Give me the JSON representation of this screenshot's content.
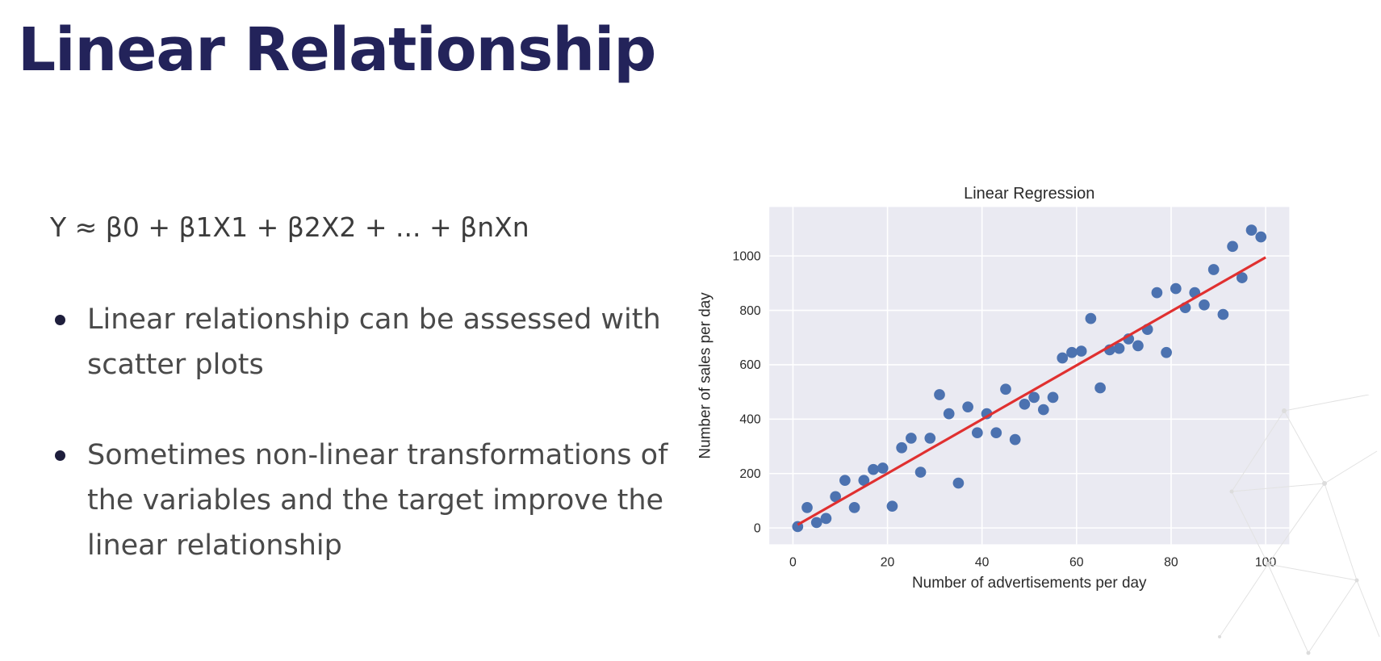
{
  "slide": {
    "title": "Linear Relationship",
    "formula": "Y ≈ β0 + β1X1 + β2X2 + ... + βnXn",
    "bullets": [
      "Linear relationship can be assessed with scatter plots",
      "Sometimes non-linear transformations of the variables and the target improve the linear relationship"
    ]
  },
  "chart_data": {
    "type": "scatter",
    "title": "Linear Regression",
    "xlabel": "Number of advertisements per day",
    "ylabel": "Number of sales per day",
    "xlim": [
      -5,
      105
    ],
    "ylim": [
      -60,
      1180
    ],
    "xticks": [
      0,
      20,
      40,
      60,
      80,
      100
    ],
    "yticks": [
      0,
      200,
      400,
      600,
      800,
      1000
    ],
    "grid": true,
    "colors": {
      "background": "#eaeaf2",
      "grid": "#ffffff",
      "points": "#4c72b0",
      "fit_line": "#e03030"
    },
    "points": {
      "x": [
        1,
        3,
        5,
        7,
        9,
        11,
        13,
        15,
        17,
        19,
        21,
        23,
        25,
        27,
        29,
        31,
        33,
        35,
        37,
        39,
        41,
        43,
        45,
        47,
        49,
        51,
        53,
        55,
        57,
        59,
        61,
        63,
        65,
        67,
        69,
        71,
        73,
        75,
        77,
        79,
        81,
        83,
        85,
        87,
        89,
        91,
        93,
        95,
        97,
        99
      ],
      "y": [
        5,
        75,
        20,
        35,
        115,
        175,
        75,
        175,
        215,
        220,
        80,
        295,
        330,
        205,
        330,
        490,
        420,
        165,
        445,
        350,
        420,
        350,
        510,
        325,
        455,
        480,
        435,
        480,
        625,
        645,
        650,
        770,
        515,
        655,
        660,
        695,
        670,
        730,
        865,
        645,
        880,
        810,
        865,
        820,
        950,
        785,
        1035,
        920,
        1095,
        1070
      ]
    },
    "fit_line": {
      "x": [
        1,
        100
      ],
      "y": [
        12,
        995
      ]
    }
  }
}
